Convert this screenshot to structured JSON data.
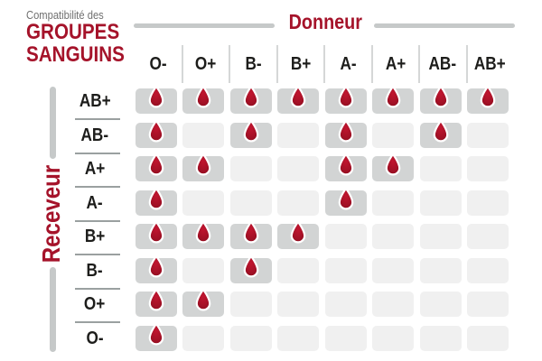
{
  "title": {
    "eyebrow": "Compatibilité des",
    "line1": "GROUPES",
    "line2": "SANGUINS"
  },
  "axes": {
    "donor": "Donneur",
    "receiver": "Receveur"
  },
  "donor_columns": [
    "O-",
    "O+",
    "B-",
    "B+",
    "A-",
    "A+",
    "AB-",
    "AB+"
  ],
  "receiver_rows": [
    "AB+",
    "AB-",
    "A+",
    "A-",
    "B+",
    "B-",
    "O+",
    "O-"
  ],
  "icons": {
    "compatible_marker": "blood-drop-icon"
  },
  "colors": {
    "brand_red": "#a5132a",
    "drop_red": "#a31126",
    "text_gray": "#6f6f6f",
    "label_dark": "#1d1d1b",
    "cell_filled": "#d2d4d4",
    "cell_empty": "#f0f0f0",
    "rule_gray": "#c6c9c9"
  },
  "chart_data": {
    "type": "heatmap",
    "title": "Compatibilité des GROUPES SANGUINS",
    "x_axis_label": "Donneur",
    "y_axis_label": "Receveur",
    "columns": [
      "O-",
      "O+",
      "B-",
      "B+",
      "A-",
      "A+",
      "AB-",
      "AB+"
    ],
    "rows": [
      "AB+",
      "AB-",
      "A+",
      "A-",
      "B+",
      "B-",
      "O+",
      "O-"
    ],
    "values": [
      [
        1,
        1,
        1,
        1,
        1,
        1,
        1,
        1
      ],
      [
        1,
        0,
        1,
        0,
        1,
        0,
        1,
        0
      ],
      [
        1,
        1,
        0,
        0,
        1,
        1,
        0,
        0
      ],
      [
        1,
        0,
        0,
        0,
        1,
        0,
        0,
        0
      ],
      [
        1,
        1,
        1,
        1,
        0,
        0,
        0,
        0
      ],
      [
        1,
        0,
        1,
        0,
        0,
        0,
        0,
        0
      ],
      [
        1,
        1,
        0,
        0,
        0,
        0,
        0,
        0
      ],
      [
        1,
        0,
        0,
        0,
        0,
        0,
        0,
        0
      ]
    ],
    "value_meaning": {
      "1": "compatible - blood drop shown in dark grey cell",
      "0": "not compatible - empty light grey cell"
    }
  }
}
